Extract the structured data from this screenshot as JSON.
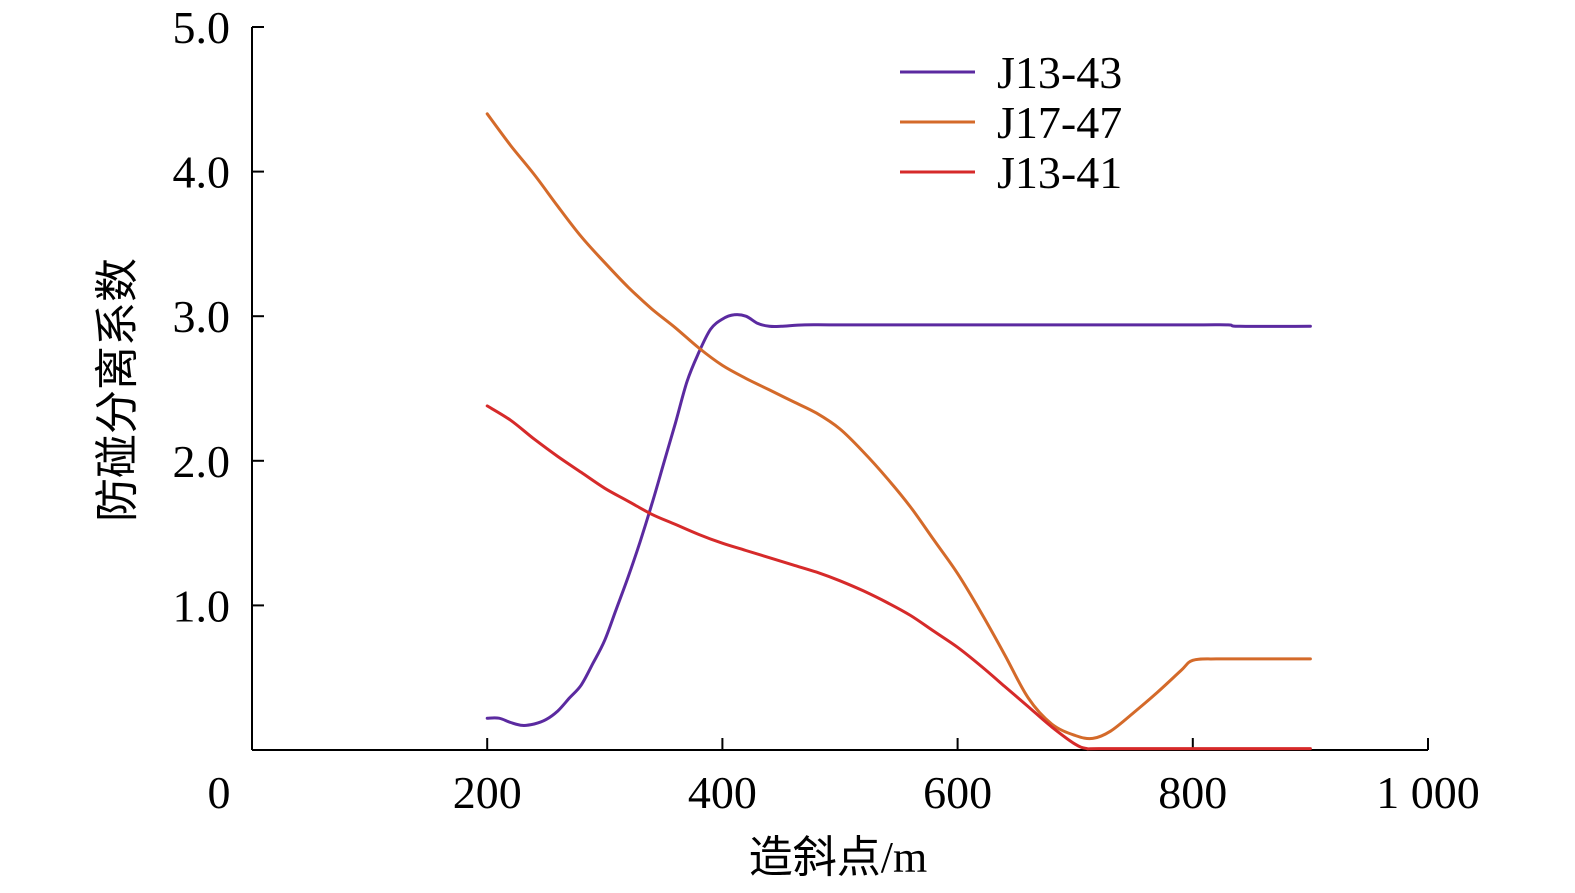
{
  "chart_data": {
    "type": "line",
    "title": "",
    "xlabel": "造斜点/m",
    "ylabel": "防碰分离系数",
    "xlim": [
      0,
      1000
    ],
    "ylim": [
      0,
      5.0
    ],
    "x_ticks": [
      {
        "value": 0,
        "label": "0"
      },
      {
        "value": 200,
        "label": "200"
      },
      {
        "value": 400,
        "label": "400"
      },
      {
        "value": 600,
        "label": "600"
      },
      {
        "value": 800,
        "label": "800"
      },
      {
        "value": 1000,
        "label": "1 000"
      }
    ],
    "y_ticks": [
      {
        "value": 1.0,
        "label": "1.0"
      },
      {
        "value": 2.0,
        "label": "2.0"
      },
      {
        "value": 3.0,
        "label": "3.0"
      },
      {
        "value": 4.0,
        "label": "4.0"
      },
      {
        "value": 5.0,
        "label": "5.0"
      }
    ],
    "grid": false,
    "legend_position": "top-right",
    "series": [
      {
        "name": "J13-43",
        "color": "#5b2aa0",
        "points": [
          [
            200,
            0.22
          ],
          [
            210,
            0.22
          ],
          [
            220,
            0.19
          ],
          [
            230,
            0.17
          ],
          [
            240,
            0.18
          ],
          [
            250,
            0.21
          ],
          [
            260,
            0.27
          ],
          [
            270,
            0.36
          ],
          [
            280,
            0.45
          ],
          [
            290,
            0.6
          ],
          [
            300,
            0.76
          ],
          [
            310,
            0.98
          ],
          [
            320,
            1.2
          ],
          [
            330,
            1.44
          ],
          [
            340,
            1.7
          ],
          [
            350,
            1.98
          ],
          [
            360,
            2.26
          ],
          [
            370,
            2.55
          ],
          [
            380,
            2.75
          ],
          [
            390,
            2.91
          ],
          [
            400,
            2.98
          ],
          [
            410,
            3.01
          ],
          [
            420,
            3.0
          ],
          [
            430,
            2.95
          ],
          [
            440,
            2.93
          ],
          [
            450,
            2.93
          ],
          [
            470,
            2.94
          ],
          [
            500,
            2.94
          ],
          [
            600,
            2.94
          ],
          [
            700,
            2.94
          ],
          [
            800,
            2.94
          ],
          [
            830,
            2.94
          ],
          [
            840,
            2.93
          ],
          [
            900,
            2.93
          ]
        ]
      },
      {
        "name": "J17-47",
        "color": "#d46a2a",
        "points": [
          [
            200,
            4.4
          ],
          [
            220,
            4.18
          ],
          [
            240,
            3.98
          ],
          [
            260,
            3.76
          ],
          [
            280,
            3.55
          ],
          [
            300,
            3.37
          ],
          [
            320,
            3.2
          ],
          [
            340,
            3.05
          ],
          [
            360,
            2.92
          ],
          [
            380,
            2.78
          ],
          [
            400,
            2.66
          ],
          [
            420,
            2.57
          ],
          [
            440,
            2.49
          ],
          [
            460,
            2.41
          ],
          [
            480,
            2.33
          ],
          [
            500,
            2.22
          ],
          [
            520,
            2.06
          ],
          [
            540,
            1.88
          ],
          [
            560,
            1.68
          ],
          [
            580,
            1.45
          ],
          [
            600,
            1.22
          ],
          [
            620,
            0.95
          ],
          [
            640,
            0.66
          ],
          [
            660,
            0.36
          ],
          [
            680,
            0.18
          ],
          [
            700,
            0.1
          ],
          [
            715,
            0.08
          ],
          [
            730,
            0.13
          ],
          [
            750,
            0.26
          ],
          [
            770,
            0.4
          ],
          [
            790,
            0.55
          ],
          [
            800,
            0.62
          ],
          [
            820,
            0.63
          ],
          [
            860,
            0.63
          ],
          [
            900,
            0.63
          ]
        ]
      },
      {
        "name": "J13-41",
        "color": "#d62a2a",
        "points": [
          [
            200,
            2.38
          ],
          [
            220,
            2.28
          ],
          [
            240,
            2.15
          ],
          [
            260,
            2.03
          ],
          [
            280,
            1.92
          ],
          [
            300,
            1.81
          ],
          [
            320,
            1.72
          ],
          [
            340,
            1.63
          ],
          [
            360,
            1.56
          ],
          [
            380,
            1.49
          ],
          [
            400,
            1.43
          ],
          [
            420,
            1.38
          ],
          [
            440,
            1.33
          ],
          [
            460,
            1.28
          ],
          [
            480,
            1.23
          ],
          [
            500,
            1.17
          ],
          [
            520,
            1.1
          ],
          [
            540,
            1.02
          ],
          [
            560,
            0.93
          ],
          [
            580,
            0.82
          ],
          [
            600,
            0.71
          ],
          [
            620,
            0.58
          ],
          [
            640,
            0.44
          ],
          [
            660,
            0.3
          ],
          [
            680,
            0.16
          ],
          [
            700,
            0.04
          ],
          [
            710,
            0.01
          ],
          [
            720,
            0.01
          ],
          [
            800,
            0.01
          ],
          [
            900,
            0.01
          ]
        ]
      }
    ]
  }
}
